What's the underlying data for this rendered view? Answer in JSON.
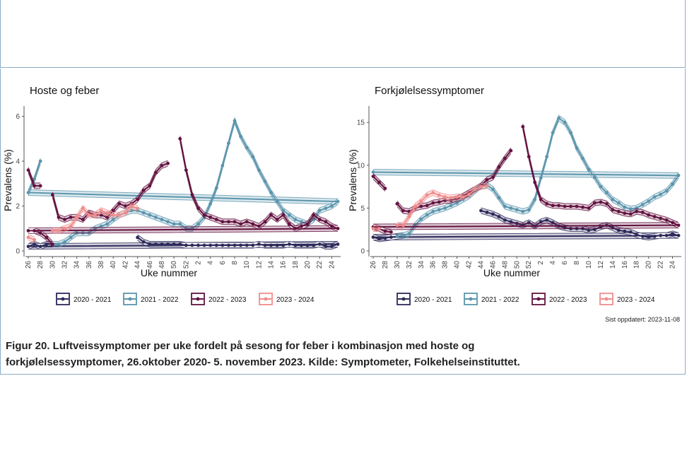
{
  "colors": {
    "s2020": "#2d2a5a",
    "s2021": "#5b95ad",
    "s2022": "#63123f",
    "s2023": "#f08c8c"
  },
  "legend": [
    "2020 - 2021",
    "2021 - 2022",
    "2022 - 2023",
    "2023 - 2024"
  ],
  "updated_text": "Sist oppdatert: 2023-11-08",
  "caption": {
    "line1": "Figur 20. Luftveissymptomer per uke fordelt på sesong for feber i kombinasjon med hoste og",
    "line2": "forkjølelsessymptomer, 26.oktober 2020- 5. november 2023. Kilde: Symptometer, Folkehelseinstituttet."
  },
  "chart_data": [
    {
      "type": "line",
      "title": "Hoste og feber",
      "xlabel": "Uke nummer",
      "ylabel": "Prevalens (%)",
      "ylim": [
        0,
        6.3
      ],
      "yticks": [
        0,
        2,
        4,
        6
      ],
      "xticks": [
        "26",
        "28",
        "30",
        "32",
        "34",
        "36",
        "38",
        "40",
        "42",
        "44",
        "46",
        "48",
        "50",
        "52",
        "2",
        "4",
        "6",
        "8",
        "10",
        "12",
        "14",
        "16",
        "18",
        "20",
        "22",
        "24"
      ],
      "series": [
        {
          "name": "2020 - 2021",
          "key": "s2020",
          "segments": [
            {
              "start": 44,
              "values": [
                0.6,
                0.4,
                0.3,
                0.3,
                0.3,
                0.3,
                0.3,
                0.3,
                0.25,
                0.25,
                0.25,
                0.25,
                0.25,
                0.25,
                0.25,
                0.25,
                0.25,
                0.25,
                0.25,
                0.25,
                0.3,
                0.25,
                0.25,
                0.25,
                0.25,
                0.3,
                0.25,
                0.25,
                0.25,
                0.25,
                0.3,
                0.2,
                0.2,
                0.3,
                0.2,
                0.3,
                0.2,
                0.3,
                0.3
              ]
            }
          ]
        },
        {
          "name": "2021 - 2022",
          "key": "s2021",
          "segments": [
            {
              "start": 30,
              "values": [
                0.3,
                0.3,
                0.4,
                0.6,
                0.8,
                0.8,
                0.8,
                1.0,
                1.1,
                1.2,
                1.4,
                1.6,
                1.7,
                1.8,
                1.8,
                1.7,
                1.6,
                1.5,
                1.4,
                1.3,
                1.2,
                1.2,
                1.0,
                1.0,
                1.2,
                1.5,
                2.1,
                2.8,
                3.8,
                4.8,
                5.8,
                5.1,
                4.6,
                4.2,
                3.6,
                3.1,
                2.6,
                2.2,
                1.8,
                1.6,
                1.4,
                1.3,
                1.2,
                1.4,
                1.8,
                1.9,
                2.0,
                2.2,
                2.6,
                3.2,
                4.0
              ]
            }
          ]
        },
        {
          "name": "2022 - 2023",
          "key": "s2022",
          "segments": [
            {
              "start": 26,
              "values": [
                3.6,
                2.9,
                2.9
              ]
            },
            {
              "start": 30,
              "values": [
                2.5,
                1.5,
                1.4,
                1.5,
                1.5,
                1.4,
                1.7,
                1.6,
                1.6,
                1.5,
                1.8,
                2.1,
                2.0,
                2.1,
                2.3,
                2.7,
                2.9,
                3.5,
                3.8,
                3.9
              ]
            },
            {
              "start": 51,
              "values": [
                5.0,
                3.6,
                2.5,
                1.9,
                1.6,
                1.5,
                1.4,
                1.3,
                1.3,
                1.3,
                1.2,
                1.3,
                1.2,
                1.1,
                1.3,
                1.6,
                1.4,
                1.6,
                1.2,
                1.0,
                1.1,
                1.2,
                1.6,
                1.4,
                1.3,
                1.1,
                1.0,
                0.9,
                0.9,
                0.8,
                0.6,
                0.3
              ]
            }
          ]
        },
        {
          "name": "2023 - 2024",
          "key": "s2023",
          "segments": [
            {
              "start": 26,
              "values": [
                0.6,
                0.5
              ]
            },
            {
              "start": 30,
              "values": [
                0.9,
                0.9,
                1.0,
                1.1,
                1.5,
                1.9,
                1.6,
                1.6,
                1.8,
                1.7,
                1.6,
                1.6,
                1.7,
                2.0,
                1.9
              ]
            }
          ]
        }
      ]
    },
    {
      "type": "line",
      "title": "Forkjølelsessymptomer",
      "xlabel": "Uke nummer",
      "ylabel": "Prevalens (%)",
      "ylim": [
        0,
        16.5
      ],
      "yticks": [
        0,
        5,
        10,
        15
      ],
      "xticks": [
        "26",
        "28",
        "30",
        "32",
        "34",
        "36",
        "38",
        "40",
        "42",
        "44",
        "46",
        "48",
        "50",
        "52",
        "2",
        "4",
        "6",
        "8",
        "10",
        "12",
        "14",
        "16",
        "18",
        "20",
        "22",
        "24"
      ],
      "series": [
        {
          "name": "2020 - 2021",
          "key": "s2020",
          "segments": [
            {
              "start": 44,
              "values": [
                4.7,
                4.5,
                4.3,
                4.0,
                3.6,
                3.4,
                3.2,
                3.0,
                3.3,
                2.9,
                3.4,
                3.6,
                3.3,
                2.9,
                2.7,
                2.6,
                2.6,
                2.6,
                2.4,
                2.5,
                2.8,
                3.0,
                2.7,
                2.4,
                2.3,
                2.2,
                1.9,
                1.7,
                1.6,
                1.7,
                1.8,
                1.8,
                2.0,
                1.8,
                1.6,
                1.4,
                1.5,
                1.6,
                1.7,
                1.8
              ]
            }
          ]
        },
        {
          "name": "2021 - 2022",
          "key": "s2021",
          "segments": [
            {
              "start": 30,
              "values": [
                1.7,
                1.8,
                2.0,
                3.0,
                3.7,
                4.2,
                4.6,
                4.8,
                5.0,
                5.3,
                5.6,
                6.0,
                6.4,
                7.0,
                7.6,
                7.7,
                7.2,
                6.2,
                5.2,
                5.0,
                4.8,
                4.6,
                4.8,
                6.0,
                8.5,
                11.0,
                13.8,
                15.5,
                15.0,
                13.8,
                12.0,
                10.8,
                9.5,
                8.6,
                7.5,
                6.8,
                6.0,
                5.6,
                5.1,
                4.9,
                5.0,
                5.4,
                5.8,
                6.3,
                6.6,
                7.0,
                7.8,
                8.8,
                9.2
              ]
            }
          ]
        },
        {
          "name": "2022 - 2023",
          "key": "s2022",
          "segments": [
            {
              "start": 26,
              "values": [
                8.7,
                8.0,
                7.3
              ]
            },
            {
              "start": 30,
              "values": [
                5.5,
                4.7,
                4.6,
                5.0,
                5.2,
                5.3,
                5.6,
                5.7,
                5.9,
                5.9,
                6.1,
                6.4,
                6.8,
                7.2,
                7.6,
                8.3,
                8.6,
                9.8,
                10.8,
                11.7
              ]
            },
            {
              "start": 51,
              "values": [
                14.5,
                11.0,
                8.0,
                6.0,
                5.5,
                5.3,
                5.3,
                5.2,
                5.2,
                5.2,
                5.1,
                5.0,
                5.6,
                5.7,
                5.5,
                4.8,
                4.6,
                4.4,
                4.3,
                4.6,
                4.5,
                4.2,
                4.0,
                3.8,
                3.6,
                3.3,
                3.0,
                2.8,
                2.6,
                2.3,
                2.2
              ]
            }
          ]
        },
        {
          "name": "2023 - 2024",
          "key": "s2023",
          "segments": [
            {
              "start": 26,
              "values": [
                2.6,
                2.6
              ]
            },
            {
              "start": 30,
              "values": [
                3.0,
                3.0,
                4.0,
                5.2,
                5.8,
                6.5,
                6.8,
                6.5,
                6.3,
                6.2,
                6.3,
                6.3,
                6.6,
                7.2,
                7.5,
                7.6
              ]
            }
          ]
        }
      ]
    }
  ]
}
